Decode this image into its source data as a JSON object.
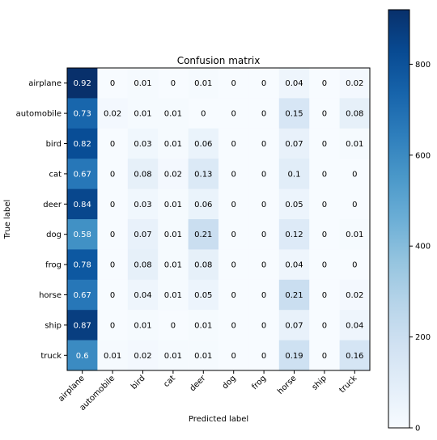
{
  "chart_data": {
    "type": "heatmap",
    "title": "Confusion matrix",
    "xlabel": "Predicted label",
    "ylabel": "True label",
    "classes": [
      "airplane",
      "automobile",
      "bird",
      "cat",
      "deer",
      "dog",
      "frog",
      "horse",
      "ship",
      "truck"
    ],
    "matrix": [
      [
        0.92,
        0.0,
        0.01,
        0.0,
        0.01,
        0.0,
        0.0,
        0.04,
        0.0,
        0.02
      ],
      [
        0.73,
        0.02,
        0.01,
        0.01,
        0.0,
        0.0,
        0.0,
        0.15,
        0.0,
        0.08
      ],
      [
        0.82,
        0.0,
        0.03,
        0.01,
        0.06,
        0.0,
        0.0,
        0.07,
        0.0,
        0.01
      ],
      [
        0.67,
        0.0,
        0.08,
        0.02,
        0.13,
        0.0,
        0.0,
        0.1,
        0.0,
        0.0
      ],
      [
        0.84,
        0.0,
        0.03,
        0.01,
        0.06,
        0.0,
        0.0,
        0.05,
        0.0,
        0.0
      ],
      [
        0.58,
        0.0,
        0.07,
        0.01,
        0.21,
        0.0,
        0.0,
        0.12,
        0.0,
        0.01
      ],
      [
        0.78,
        0.0,
        0.08,
        0.01,
        0.08,
        0.0,
        0.0,
        0.04,
        0.0,
        0.0
      ],
      [
        0.67,
        0.0,
        0.04,
        0.01,
        0.05,
        0.0,
        0.0,
        0.21,
        0.0,
        0.02
      ],
      [
        0.87,
        0.0,
        0.01,
        0.0,
        0.01,
        0.0,
        0.0,
        0.07,
        0.0,
        0.04
      ],
      [
        0.6,
        0.01,
        0.02,
        0.01,
        0.01,
        0.0,
        0.0,
        0.19,
        0.0,
        0.16
      ]
    ],
    "colorbar": {
      "ticks": [
        0,
        200,
        400,
        600,
        800
      ],
      "range": [
        0,
        920
      ],
      "colormap": "Blues"
    },
    "colors": {
      "low": "#f7fbff",
      "high": "#08306b",
      "text_dark": "#000000",
      "text_light": "#ffffff"
    }
  }
}
